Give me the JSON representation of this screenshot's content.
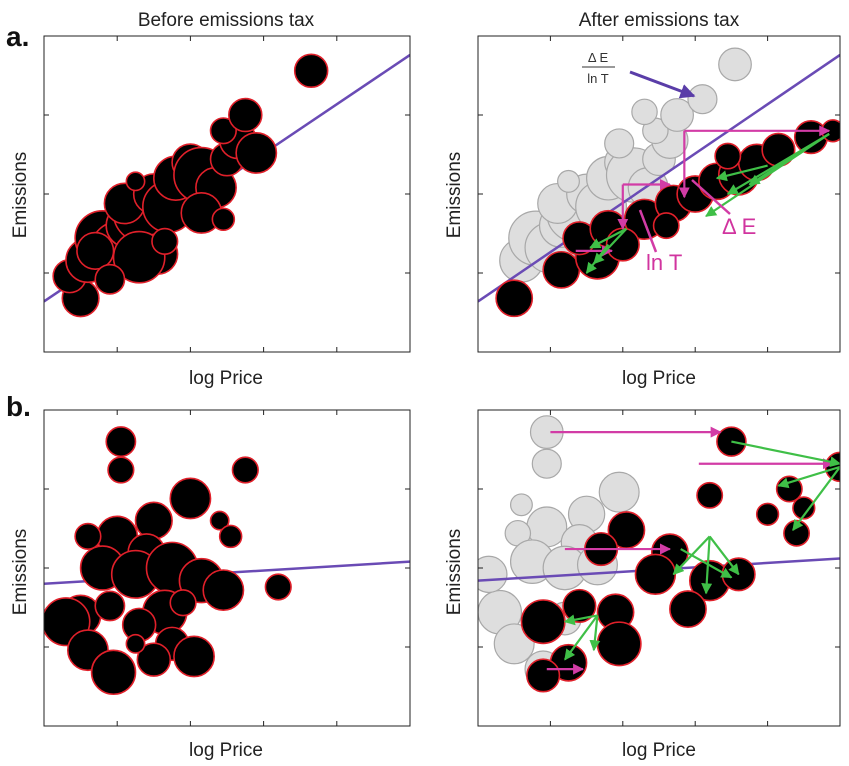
{
  "figure": {
    "row_labels": [
      "a.",
      "b."
    ]
  },
  "colors": {
    "firm_fill": "#000000",
    "firm_stroke": "#e0202a",
    "ghost_fill": "#dedede",
    "ghost_stroke": "#a8a8a8",
    "trend_line": "#6a4bb5",
    "tax_arrow": "#d23ca6",
    "shift_arrow": "#3fbf47"
  },
  "chart_data": [
    {
      "id": "a-before",
      "type": "scatter",
      "title": "Before emissions tax",
      "xlabel": "log Price",
      "ylabel": "Emissions",
      "xlim": [
        0,
        10
      ],
      "ylim": [
        0,
        10
      ],
      "grid": false,
      "trend_line": [
        [
          0,
          1.6
        ],
        [
          10,
          9.4
        ]
      ],
      "points": [
        [
          1.0,
          1.7,
          0.5
        ],
        [
          0.7,
          2.4,
          0.45
        ],
        [
          1.2,
          2.9,
          0.6
        ],
        [
          1.6,
          3.6,
          0.75
        ],
        [
          2.0,
          3.3,
          0.7
        ],
        [
          1.4,
          3.2,
          0.5
        ],
        [
          2.3,
          4.0,
          0.6
        ],
        [
          2.7,
          4.4,
          0.8
        ],
        [
          2.2,
          4.7,
          0.55
        ],
        [
          3.0,
          5.0,
          0.55
        ],
        [
          3.4,
          4.6,
          0.7
        ],
        [
          3.1,
          3.1,
          0.55
        ],
        [
          2.6,
          3.0,
          0.7
        ],
        [
          3.6,
          5.5,
          0.6
        ],
        [
          4.0,
          6.0,
          0.5
        ],
        [
          4.3,
          5.6,
          0.75
        ],
        [
          4.7,
          5.2,
          0.55
        ],
        [
          4.3,
          4.4,
          0.55
        ],
        [
          5.0,
          6.1,
          0.45
        ],
        [
          5.3,
          6.7,
          0.5
        ],
        [
          5.8,
          6.3,
          0.55
        ],
        [
          4.9,
          7.0,
          0.35
        ],
        [
          5.5,
          7.5,
          0.45
        ],
        [
          4.9,
          4.2,
          0.3
        ],
        [
          7.3,
          8.9,
          0.45
        ],
        [
          3.3,
          3.5,
          0.35
        ],
        [
          1.8,
          2.3,
          0.4
        ],
        [
          2.5,
          5.4,
          0.25
        ]
      ]
    },
    {
      "id": "a-after",
      "type": "scatter",
      "title": "After emissions tax",
      "xlabel": "log Price",
      "ylabel": "Emissions",
      "xlim": [
        0,
        10
      ],
      "ylim": [
        0,
        10
      ],
      "grid": false,
      "trend_line": [
        [
          0,
          1.6
        ],
        [
          10,
          9.4
        ]
      ],
      "annotations": {
        "delta_e_label": "Δ E",
        "ln_t_label": "ln T",
        "fraction_numerator": "Δ E",
        "fraction_denominator": "ln T"
      },
      "ghost_points": [
        [
          1.0,
          1.7,
          0.5
        ],
        [
          1.2,
          2.9,
          0.6
        ],
        [
          1.6,
          3.6,
          0.75
        ],
        [
          2.0,
          3.3,
          0.7
        ],
        [
          2.3,
          4.0,
          0.6
        ],
        [
          2.7,
          4.4,
          0.8
        ],
        [
          2.2,
          4.7,
          0.55
        ],
        [
          3.0,
          5.0,
          0.55
        ],
        [
          3.4,
          4.6,
          0.7
        ],
        [
          3.6,
          5.5,
          0.6
        ],
        [
          4.0,
          6.0,
          0.5
        ],
        [
          4.3,
          5.6,
          0.75
        ],
        [
          4.7,
          5.2,
          0.55
        ],
        [
          5.0,
          6.1,
          0.45
        ],
        [
          5.3,
          6.7,
          0.5
        ],
        [
          4.9,
          7.0,
          0.35
        ],
        [
          5.5,
          7.5,
          0.45
        ],
        [
          6.2,
          8.0,
          0.4
        ],
        [
          7.1,
          9.1,
          0.45
        ],
        [
          2.5,
          5.4,
          0.3
        ],
        [
          3.9,
          6.6,
          0.4
        ],
        [
          4.6,
          7.6,
          0.35
        ]
      ],
      "points": [
        [
          1.0,
          1.7,
          0.5
        ],
        [
          2.3,
          2.6,
          0.5
        ],
        [
          3.3,
          3.0,
          0.6
        ],
        [
          2.8,
          3.6,
          0.45
        ],
        [
          3.6,
          3.9,
          0.5
        ],
        [
          4.6,
          4.2,
          0.55
        ],
        [
          5.4,
          4.7,
          0.5
        ],
        [
          6.0,
          5.0,
          0.5
        ],
        [
          6.6,
          5.4,
          0.5
        ],
        [
          7.2,
          5.6,
          0.55
        ],
        [
          7.7,
          6.0,
          0.5
        ],
        [
          8.3,
          6.4,
          0.45
        ],
        [
          9.2,
          6.8,
          0.45
        ],
        [
          4.0,
          3.4,
          0.45
        ],
        [
          5.2,
          4.0,
          0.35
        ],
        [
          6.9,
          6.2,
          0.35
        ],
        [
          9.8,
          7.0,
          0.3
        ]
      ],
      "tax_arrows": [
        [
          5.7,
          7.0,
          9.7,
          7.0
        ],
        [
          4.0,
          5.3,
          5.3,
          5.3
        ],
        [
          2.7,
          3.2,
          3.7,
          3.2
        ],
        [
          5.7,
          7.0,
          5.7,
          4.9
        ],
        [
          4.0,
          5.3,
          4.0,
          3.9
        ]
      ],
      "shift_arrows": [
        [
          9.7,
          6.9,
          6.3,
          4.3
        ],
        [
          9.7,
          6.9,
          6.9,
          5.0
        ],
        [
          9.7,
          6.9,
          7.5,
          5.3
        ],
        [
          8.0,
          5.9,
          6.6,
          5.5
        ],
        [
          4.1,
          3.9,
          3.1,
          3.3
        ],
        [
          4.1,
          3.9,
          3.2,
          2.8
        ],
        [
          3.6,
          3.4,
          3.0,
          2.5
        ]
      ]
    },
    {
      "id": "b-before",
      "type": "scatter",
      "title": "",
      "xlabel": "log Price",
      "ylabel": "Emissions",
      "xlim": [
        0,
        10
      ],
      "ylim": [
        0,
        10
      ],
      "grid": false,
      "trend_line": [
        [
          0,
          4.5
        ],
        [
          10,
          5.2
        ]
      ],
      "points": [
        [
          2.1,
          9.0,
          0.4
        ],
        [
          2.1,
          8.1,
          0.35
        ],
        [
          4.0,
          7.2,
          0.55
        ],
        [
          3.0,
          6.5,
          0.5
        ],
        [
          2.0,
          6.0,
          0.55
        ],
        [
          2.8,
          5.5,
          0.5
        ],
        [
          1.2,
          6.0,
          0.35
        ],
        [
          1.6,
          5.0,
          0.6
        ],
        [
          2.5,
          4.8,
          0.65
        ],
        [
          3.5,
          5.0,
          0.7
        ],
        [
          4.3,
          4.6,
          0.6
        ],
        [
          4.9,
          4.3,
          0.55
        ],
        [
          3.3,
          3.6,
          0.6
        ],
        [
          2.6,
          3.2,
          0.45
        ],
        [
          1.0,
          3.5,
          0.55
        ],
        [
          0.6,
          3.3,
          0.65
        ],
        [
          1.2,
          2.4,
          0.55
        ],
        [
          3.5,
          2.6,
          0.45
        ],
        [
          4.1,
          2.2,
          0.55
        ],
        [
          1.9,
          1.7,
          0.6
        ],
        [
          3.0,
          2.1,
          0.45
        ],
        [
          5.5,
          8.1,
          0.35
        ],
        [
          4.8,
          6.5,
          0.25
        ],
        [
          5.1,
          6.0,
          0.3
        ],
        [
          6.4,
          4.4,
          0.35
        ],
        [
          3.8,
          3.9,
          0.35
        ],
        [
          2.5,
          2.6,
          0.25
        ],
        [
          1.8,
          3.8,
          0.4
        ]
      ]
    },
    {
      "id": "b-after",
      "type": "scatter",
      "title": "",
      "xlabel": "log Price",
      "ylabel": "Emissions",
      "xlim": [
        0,
        10
      ],
      "ylim": [
        0,
        10
      ],
      "grid": false,
      "trend_line": [
        [
          0,
          4.6
        ],
        [
          10,
          5.3
        ]
      ],
      "ghost_points": [
        [
          1.9,
          9.3,
          0.45
        ],
        [
          1.9,
          8.3,
          0.4
        ],
        [
          3.9,
          7.4,
          0.55
        ],
        [
          3.0,
          6.7,
          0.5
        ],
        [
          1.9,
          6.3,
          0.55
        ],
        [
          2.8,
          5.8,
          0.5
        ],
        [
          1.1,
          6.1,
          0.35
        ],
        [
          1.5,
          5.2,
          0.6
        ],
        [
          0.6,
          3.6,
          0.6
        ],
        [
          1.0,
          2.6,
          0.55
        ],
        [
          2.4,
          5.0,
          0.6
        ],
        [
          3.3,
          5.1,
          0.55
        ],
        [
          2.4,
          3.4,
          0.45
        ],
        [
          1.8,
          1.8,
          0.5
        ],
        [
          0.3,
          4.8,
          0.5
        ],
        [
          1.2,
          7.0,
          0.3
        ]
      ],
      "points": [
        [
          7.0,
          9.0,
          0.4
        ],
        [
          10.0,
          8.2,
          0.4
        ],
        [
          8.6,
          7.5,
          0.35
        ],
        [
          6.4,
          7.3,
          0.35
        ],
        [
          4.1,
          6.2,
          0.5
        ],
        [
          3.4,
          5.6,
          0.45
        ],
        [
          5.3,
          5.5,
          0.5
        ],
        [
          4.9,
          4.8,
          0.55
        ],
        [
          6.4,
          4.6,
          0.55
        ],
        [
          7.2,
          4.8,
          0.45
        ],
        [
          5.8,
          3.7,
          0.5
        ],
        [
          3.8,
          3.6,
          0.5
        ],
        [
          2.8,
          3.8,
          0.45
        ],
        [
          1.8,
          3.3,
          0.6
        ],
        [
          3.9,
          2.6,
          0.6
        ],
        [
          2.5,
          2.0,
          0.5
        ],
        [
          1.8,
          1.6,
          0.45
        ],
        [
          8.8,
          6.1,
          0.35
        ],
        [
          8.0,
          6.7,
          0.3
        ],
        [
          9.0,
          6.9,
          0.3
        ]
      ],
      "tax_arrows": [
        [
          2.0,
          9.3,
          6.7,
          9.3
        ],
        [
          6.1,
          8.3,
          9.8,
          8.3
        ],
        [
          2.4,
          5.6,
          5.3,
          5.6
        ],
        [
          1.9,
          1.8,
          2.9,
          1.8
        ]
      ],
      "shift_arrows": [
        [
          7.0,
          9.0,
          10.0,
          8.3
        ],
        [
          10.0,
          8.2,
          8.3,
          7.6
        ],
        [
          10.0,
          8.2,
          8.7,
          6.2
        ],
        [
          6.4,
          6.0,
          7.2,
          4.8
        ],
        [
          6.4,
          6.0,
          5.4,
          4.8
        ],
        [
          6.4,
          6.0,
          6.3,
          4.2
        ],
        [
          5.6,
          5.6,
          7.0,
          4.7
        ],
        [
          3.3,
          3.5,
          2.4,
          2.1
        ],
        [
          3.3,
          3.5,
          2.4,
          3.3
        ],
        [
          3.3,
          3.5,
          3.2,
          2.4
        ]
      ]
    }
  ]
}
